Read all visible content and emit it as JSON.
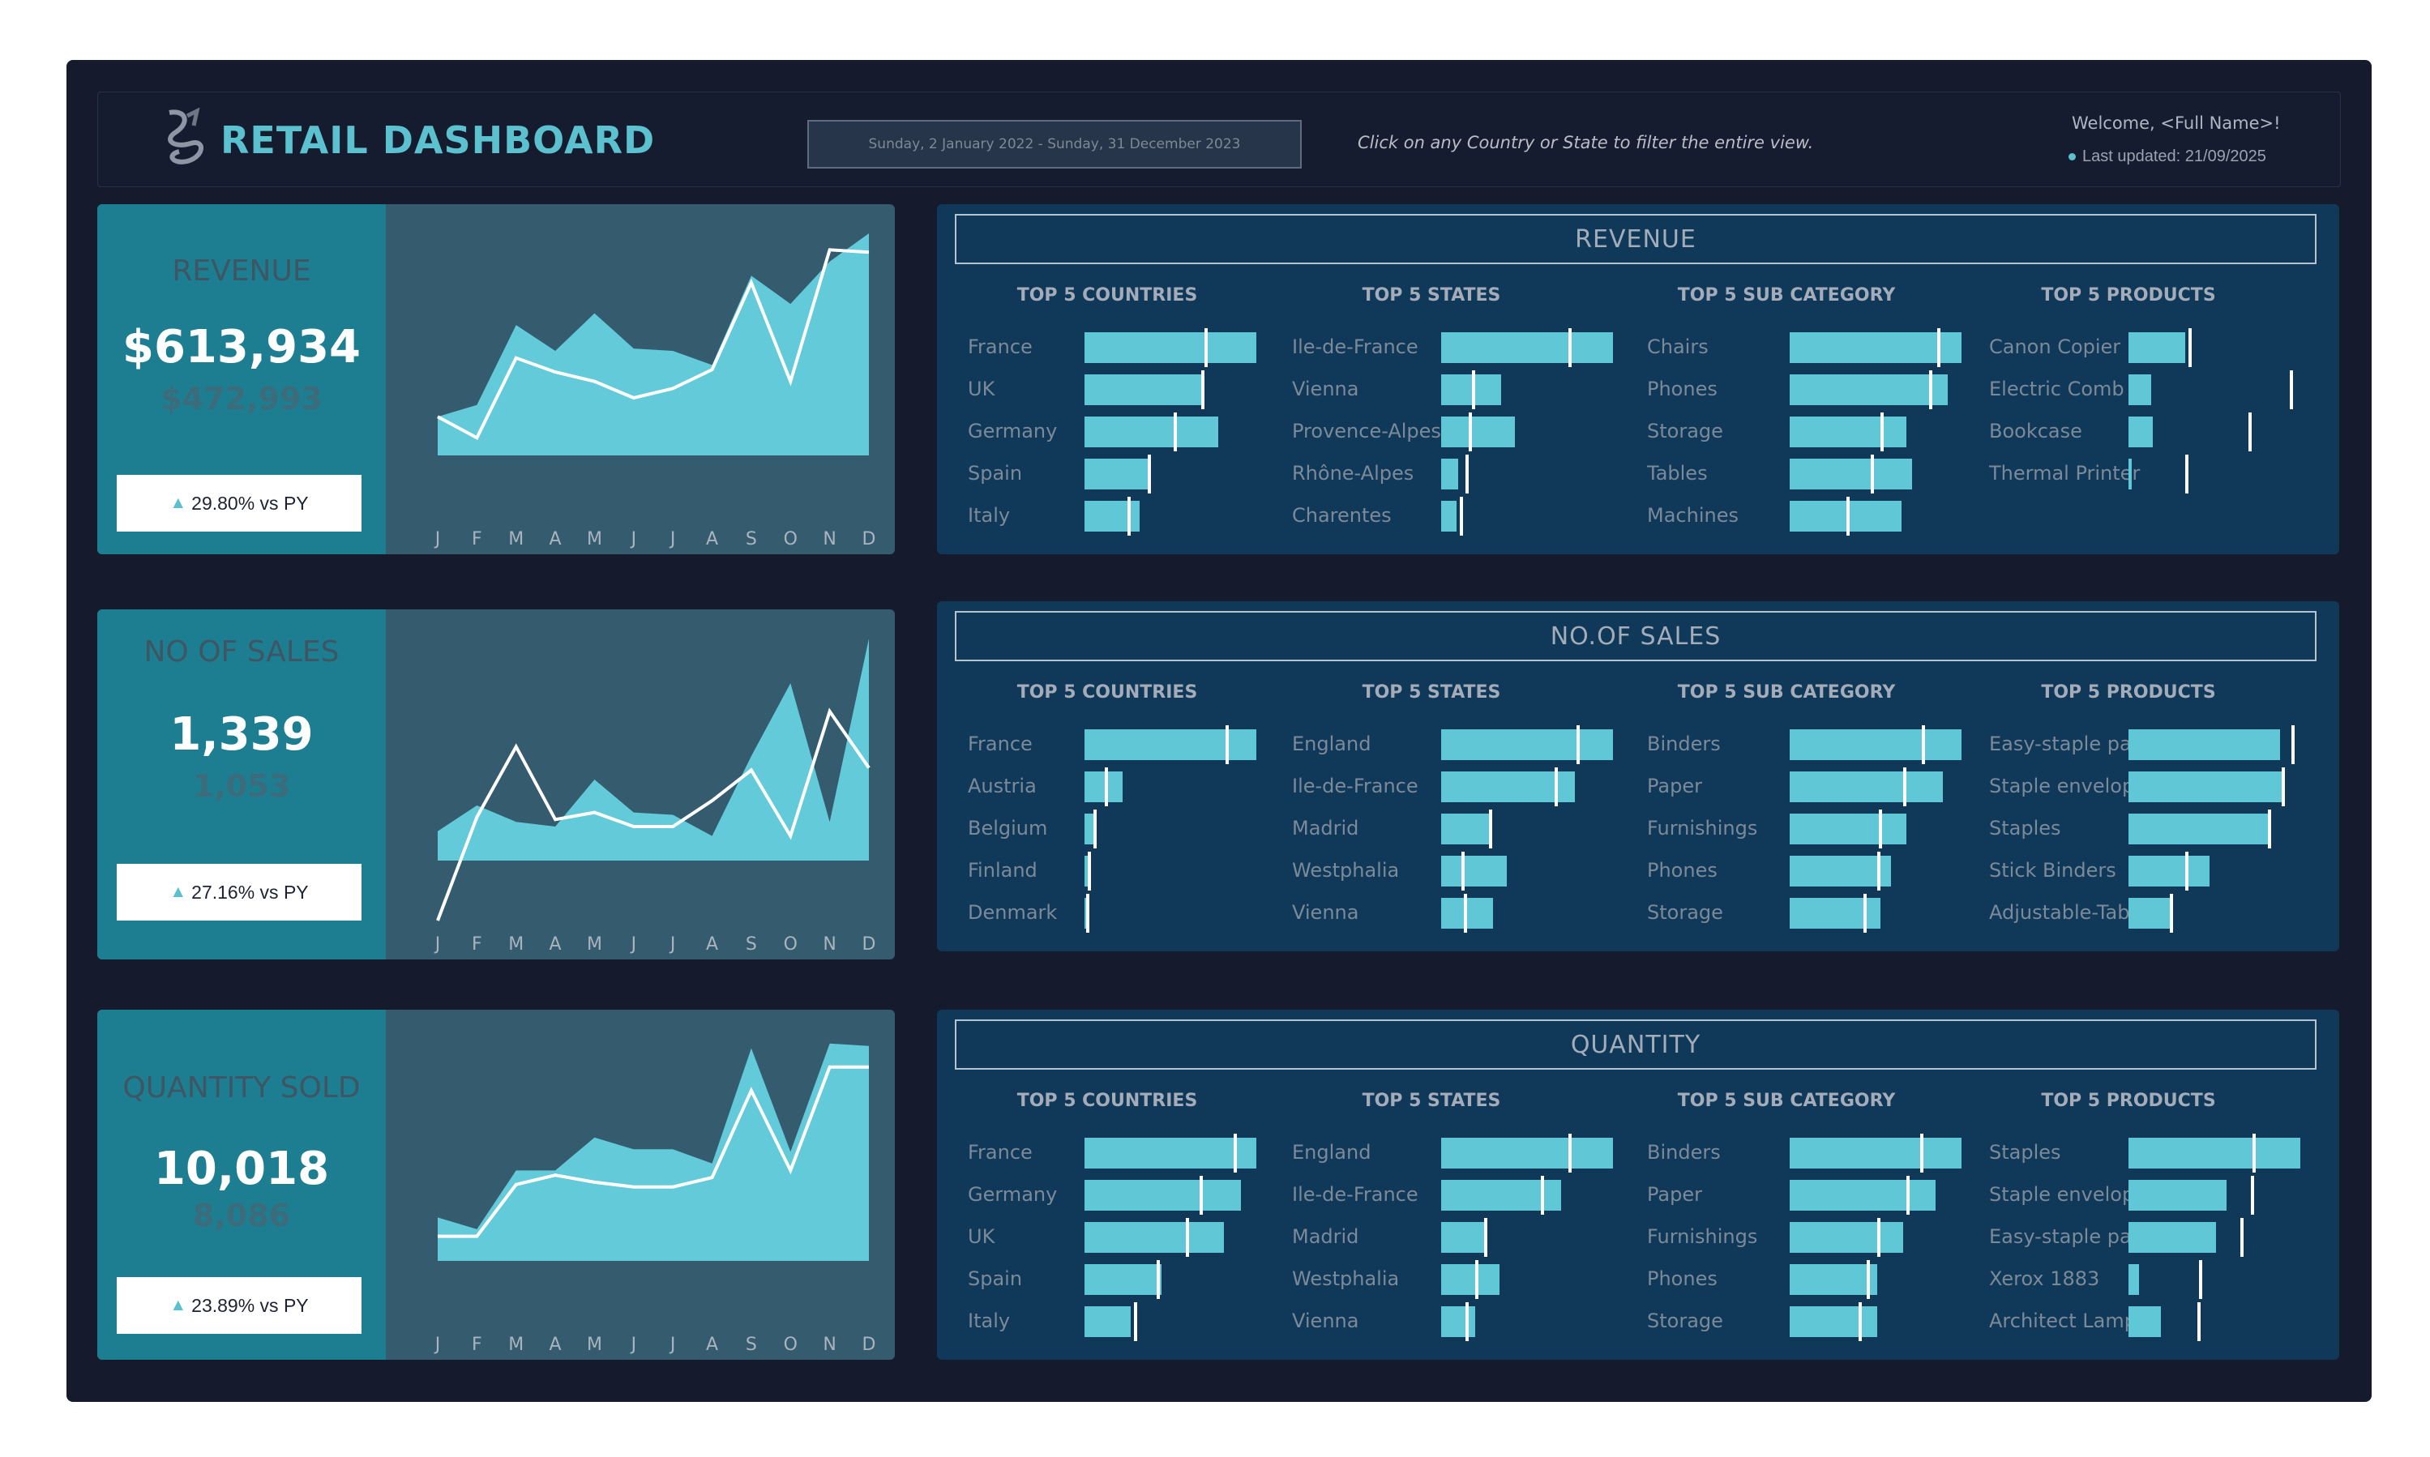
{
  "header": {
    "title": "RETAIL  DASHBOARD",
    "date_range": "Sunday, 2 January 2022 - Sunday, 31 December 2023",
    "hint": "Click on any Country or State to filter the entire view.",
    "welcome": "Welcome, <Full Name>!",
    "last_updated": "Last updated: 21/09/2025"
  },
  "colors": {
    "accent": "#5cc1cf",
    "background": "#151a2c",
    "panel": "#103859",
    "kpi_left": "#1d7e92"
  },
  "months": [
    "J",
    "F",
    "M",
    "A",
    "M",
    "J",
    "J",
    "A",
    "S",
    "O",
    "N",
    "D"
  ],
  "kpis": [
    {
      "label": "REVENUE",
      "value": "$613,934",
      "previous": "$472,993",
      "change": "29.80% vs PY",
      "current_trend": [
        22,
        27,
        61,
        50,
        66,
        51,
        50,
        44,
        82,
        70,
        88,
        100
      ],
      "previous_trend": [
        22,
        13,
        47,
        41,
        37,
        30,
        34,
        42,
        79,
        37,
        93,
        92
      ]
    },
    {
      "label": "NO OF SALES",
      "value": "1,339",
      "previous": "1,053",
      "change": "27.16% vs PY",
      "current_trend": [
        18,
        29,
        22,
        20,
        40,
        26,
        25,
        16,
        50,
        81,
        22,
        100
      ],
      "previous_trend": [
        -20,
        24,
        54,
        23,
        26,
        20,
        20,
        31,
        44,
        16,
        69,
        45
      ]
    },
    {
      "label": "QUANTITY SOLD",
      "value": "10,018",
      "previous": "8,086",
      "change": "23.89% vs PY",
      "current_trend": [
        24,
        19,
        44,
        44,
        58,
        53,
        53,
        47,
        96,
        52,
        98,
        97
      ],
      "previous_trend": [
        16,
        16,
        38,
        42,
        39,
        37,
        37,
        41,
        78,
        44,
        88,
        88
      ]
    }
  ],
  "panels": [
    {
      "title": "REVENUE",
      "columns": [
        {
          "head": "TOP 5 COUNTRIES",
          "items": [
            {
              "label": "France",
              "value": 100,
              "prev": 70
            },
            {
              "label": "UK",
              "value": 68,
              "prev": 68
            },
            {
              "label": "Germany",
              "value": 78,
              "prev": 52
            },
            {
              "label": "Spain",
              "value": 37,
              "prev": 37
            },
            {
              "label": "Italy",
              "value": 32,
              "prev": 25
            }
          ]
        },
        {
          "head": "TOP 5 STATES",
          "items": [
            {
              "label": "Ile-de-France",
              "value": 100,
              "prev": 74
            },
            {
              "label": "Vienna",
              "value": 35,
              "prev": 18
            },
            {
              "label": "Provence-Alpes",
              "value": 43,
              "prev": 16
            },
            {
              "label": "Rhône-Alpes",
              "value": 10,
              "prev": 14
            },
            {
              "label": "Charentes",
              "value": 9,
              "prev": 11
            }
          ]
        },
        {
          "head": "TOP 5 SUB CATEGORY",
          "items": [
            {
              "label": "Chairs",
              "value": 100,
              "prev": 86
            },
            {
              "label": "Phones",
              "value": 92,
              "prev": 81
            },
            {
              "label": "Storage",
              "value": 68,
              "prev": 53
            },
            {
              "label": "Tables",
              "value": 71,
              "prev": 47
            },
            {
              "label": "Machines",
              "value": 65,
              "prev": 33
            }
          ]
        },
        {
          "head": "TOP 5 PRODUCTS",
          "items": [
            {
              "label": "Canon  Copier",
              "value": 33,
              "prev": 35
            },
            {
              "label": "Electric  Comb",
              "value": 13,
              "prev": 94
            },
            {
              "label": "Bookcase",
              "value": 14,
              "prev": 70
            },
            {
              "label": "Thermal Printer",
              "value": 2,
              "prev": 33
            },
            {
              "label": "",
              "value": 0,
              "prev": 0
            }
          ]
        }
      ]
    },
    {
      "title": "NO.OF SALES",
      "columns": [
        {
          "head": "TOP 5 COUNTRIES",
          "items": [
            {
              "label": "France",
              "value": 100,
              "prev": 82
            },
            {
              "label": "Austria",
              "value": 22,
              "prev": 12
            },
            {
              "label": "Belgium",
              "value": 6,
              "prev": 5
            },
            {
              "label": "Finland",
              "value": 3,
              "prev": 2
            },
            {
              "label": "Denmark",
              "value": 2,
              "prev": 1
            }
          ]
        },
        {
          "head": "TOP 5 STATES",
          "items": [
            {
              "label": "England",
              "value": 100,
              "prev": 79
            },
            {
              "label": "Ile-de-France",
              "value": 78,
              "prev": 66
            },
            {
              "label": "Madrid",
              "value": 28,
              "prev": 28
            },
            {
              "label": "Westphalia",
              "value": 38,
              "prev": 12
            },
            {
              "label": "Vienna",
              "value": 30,
              "prev": 13
            }
          ]
        },
        {
          "head": "TOP 5 SUB CATEGORY",
          "items": [
            {
              "label": "Binders",
              "value": 100,
              "prev": 77
            },
            {
              "label": "Paper",
              "value": 89,
              "prev": 66
            },
            {
              "label": "Furnishings",
              "value": 68,
              "prev": 52
            },
            {
              "label": "Phones",
              "value": 59,
              "prev": 51
            },
            {
              "label": "Storage",
              "value": 53,
              "prev": 43
            }
          ]
        },
        {
          "head": "TOP 5 PRODUCTS",
          "items": [
            {
              "label": "Easy-staple pa..",
              "value": 88,
              "prev": 95
            },
            {
              "label": "Staple envelope",
              "value": 89,
              "prev": 89
            },
            {
              "label": "Staples",
              "value": 81,
              "prev": 81
            },
            {
              "label": "Stick Binders",
              "value": 47,
              "prev": 33
            },
            {
              "label": "Adjustable-Tab..",
              "value": 25,
              "prev": 24
            }
          ]
        }
      ]
    },
    {
      "title": "QUANTITY",
      "columns": [
        {
          "head": "TOP 5 COUNTRIES",
          "items": [
            {
              "label": "France",
              "value": 100,
              "prev": 87
            },
            {
              "label": "Germany",
              "value": 91,
              "prev": 67
            },
            {
              "label": "UK",
              "value": 81,
              "prev": 59
            },
            {
              "label": "Spain",
              "value": 45,
              "prev": 42
            },
            {
              "label": "Italy",
              "value": 27,
              "prev": 29
            }
          ]
        },
        {
          "head": "TOP 5 STATES",
          "items": [
            {
              "label": "England",
              "value": 100,
              "prev": 74
            },
            {
              "label": "Ile-de-France",
              "value": 70,
              "prev": 58
            },
            {
              "label": "Madrid",
              "value": 26,
              "prev": 25
            },
            {
              "label": "Westphalia",
              "value": 34,
              "prev": 20
            },
            {
              "label": "Vienna",
              "value": 20,
              "prev": 14
            }
          ]
        },
        {
          "head": "TOP 5 SUB CATEGORY",
          "items": [
            {
              "label": "Binders",
              "value": 100,
              "prev": 76
            },
            {
              "label": "Paper",
              "value": 85,
              "prev": 68
            },
            {
              "label": "Furnishings",
              "value": 66,
              "prev": 51
            },
            {
              "label": "Phones",
              "value": 51,
              "prev": 45
            },
            {
              "label": "Storage",
              "value": 51,
              "prev": 40
            }
          ]
        },
        {
          "head": "TOP 5 PRODUCTS",
          "items": [
            {
              "label": "Staples",
              "value": 100,
              "prev": 72
            },
            {
              "label": "Staple envelope",
              "value": 57,
              "prev": 71
            },
            {
              "label": "Easy-staple paper",
              "value": 51,
              "prev": 65
            },
            {
              "label": "Xerox 1883",
              "value": 6,
              "prev": 41
            },
            {
              "label": "Architect Lamp",
              "value": 19,
              "prev": 40
            }
          ]
        }
      ]
    }
  ]
}
